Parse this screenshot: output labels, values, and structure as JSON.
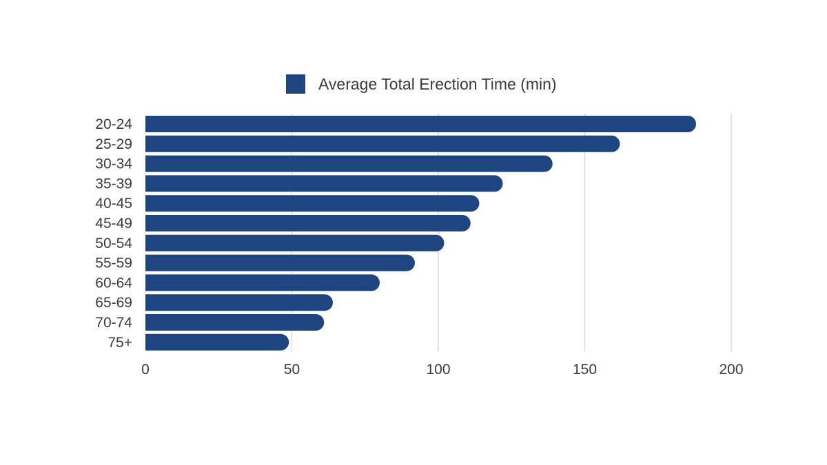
{
  "chart_data": {
    "type": "bar",
    "orientation": "horizontal",
    "categories": [
      "20-24",
      "25-29",
      "30-34",
      "35-39",
      "40-45",
      "45-49",
      "50-54",
      "55-59",
      "60-64",
      "65-69",
      "70-74",
      "75+"
    ],
    "series": [
      {
        "name": "Average Total Erection Time (min)",
        "values": [
          188,
          162,
          139,
          122,
          114,
          111,
          102,
          92,
          80,
          64,
          61,
          49
        ]
      }
    ],
    "xlim": [
      0,
      200
    ],
    "xticks": [
      0,
      50,
      100,
      150,
      200
    ],
    "grid": true,
    "legend": "top",
    "colors": {
      "bar": "#1f4580",
      "grid": "#d9d9d9",
      "text": "#3a3a3a"
    }
  }
}
